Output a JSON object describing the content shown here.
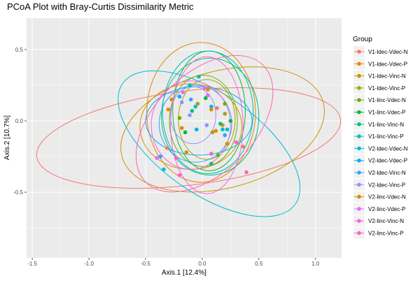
{
  "chart_data": {
    "type": "scatter",
    "title": "PCoA Plot with Bray-Curtis Dissimilarity Metric",
    "xlabel": "Axis.1   [12.4%]",
    "ylabel": "Axis.2   [10.7%]",
    "xlim": [
      -1.55,
      1.23
    ],
    "ylim": [
      -0.96,
      0.72
    ],
    "x_ticks": [
      -1.5,
      -1.0,
      -0.5,
      0.0,
      0.5,
      1.0
    ],
    "x_tick_labels": [
      "-1.5",
      "-1.0",
      "-0.5",
      "0.0",
      "0.5",
      "1.0"
    ],
    "y_ticks": [
      -0.5,
      0.0,
      0.5
    ],
    "y_tick_labels": [
      "-0.5",
      "0.0",
      "0.5"
    ],
    "grid": true,
    "panel_background": "#ebebeb",
    "legend": {
      "title": "Group",
      "placement": "right"
    },
    "series": [
      {
        "name": "V1-ldec-Vdec-N",
        "color": "#F8766D",
        "points": [
          [
            -0.31,
            -0.19
          ],
          [
            0.13,
            0.09
          ],
          [
            0.36,
            -0.18
          ]
        ],
        "ellipse": {
          "cx": -0.12,
          "cy": -0.12,
          "rx": 1.35,
          "ry": 0.33,
          "angle": 7
        }
      },
      {
        "name": "V1-ldec-Vdec-P",
        "color": "#E58700",
        "points": [
          [
            -0.27,
            0.15
          ],
          [
            -0.18,
            -0.05
          ],
          [
            0.12,
            -0.07
          ]
        ],
        "ellipse": {
          "cx": -0.01,
          "cy": 0.06,
          "rx": 0.48,
          "ry": 0.49,
          "angle": 0
        }
      },
      {
        "name": "V1-ldec-Vinc-N",
        "color": "#C99800",
        "points": [
          [
            0.05,
            0.22
          ],
          [
            0.18,
            -0.03
          ],
          [
            0.22,
            -0.16
          ]
        ],
        "ellipse": {
          "cx": 0.18,
          "cy": -0.06,
          "rx": 0.92,
          "ry": 0.41,
          "angle": 15
        }
      },
      {
        "name": "V1-ldec-Vinc-P",
        "color": "#A3A500",
        "points": [
          [
            -0.04,
            0.12
          ],
          [
            0.09,
            -0.08
          ],
          [
            0.2,
            0.05
          ]
        ],
        "ellipse": {
          "cx": 0.04,
          "cy": 0.01,
          "rx": 0.25,
          "ry": 0.28,
          "angle": 0
        }
      },
      {
        "name": "V1-linc-Vdec-N",
        "color": "#6BB100",
        "points": [
          [
            0.2,
            0.12
          ],
          [
            -0.2,
            0.02
          ],
          [
            0.14,
            -0.24
          ]
        ],
        "ellipse": {
          "cx": 0.01,
          "cy": 0.0,
          "rx": 0.3,
          "ry": 0.32,
          "angle": 0
        }
      },
      {
        "name": "V1-linc-Vdec-P",
        "color": "#00BA38",
        "points": [
          [
            0.25,
            0.0
          ],
          [
            0.03,
            0.16
          ],
          [
            -0.15,
            -0.08
          ]
        ],
        "ellipse": {
          "cx": 0.06,
          "cy": 0.07,
          "rx": 0.32,
          "ry": 0.42,
          "angle": 0
        }
      },
      {
        "name": "V1-linc-Vinc-N",
        "color": "#00BF7D",
        "points": [
          [
            -0.09,
            0.07
          ],
          [
            0.08,
            -0.3
          ],
          [
            0.16,
            -0.02
          ]
        ],
        "ellipse": {
          "cx": 0.07,
          "cy": 0.03,
          "rx": 0.43,
          "ry": 0.41,
          "angle": 0
        }
      },
      {
        "name": "V1-linc-Vinc-P",
        "color": "#00C0B5",
        "points": [
          [
            -0.11,
            0.25
          ],
          [
            -0.03,
            0.31
          ],
          [
            0.22,
            -0.06
          ]
        ],
        "ellipse": {
          "cx": 0.05,
          "cy": 0.06,
          "rx": 0.4,
          "ry": 0.43,
          "angle": 0
        }
      },
      {
        "name": "V2-ldec-Vdec-N",
        "color": "#00BCD8",
        "points": [
          [
            -0.34,
            -0.34
          ],
          [
            -0.06,
            0.1
          ],
          [
            0.18,
            -0.06
          ]
        ],
        "ellipse": {
          "cx": 0.06,
          "cy": -0.16,
          "rx": 0.93,
          "ry": 0.35,
          "angle": -35
        }
      },
      {
        "name": "V2-ldec-Vdec-P",
        "color": "#00B0F6",
        "points": [
          [
            -0.2,
            0.17
          ],
          [
            0.08,
            0.1
          ],
          [
            -0.05,
            -0.06
          ]
        ],
        "ellipse": {
          "cx": -0.03,
          "cy": 0.0,
          "rx": 0.47,
          "ry": 0.24,
          "angle": 0
        }
      },
      {
        "name": "V2-ldec-Vinc-N",
        "color": "#35A2FF",
        "points": [
          [
            -0.37,
            -0.25
          ],
          [
            -0.1,
            0.15
          ],
          [
            0.2,
            -0.1
          ]
        ],
        "ellipse": {
          "cx": -0.06,
          "cy": -0.02,
          "rx": 0.32,
          "ry": 0.27,
          "angle": 0
        }
      },
      {
        "name": "V2-ldec-Vinc-P",
        "color": "#9590FF",
        "points": [
          [
            -0.18,
            0.13
          ],
          [
            0.04,
            -0.03
          ],
          [
            -0.11,
            0.04
          ]
        ],
        "ellipse": {
          "cx": -0.08,
          "cy": 0.04,
          "rx": 0.2,
          "ry": 0.2,
          "angle": 0
        }
      },
      {
        "name": "V2-linc-Vdec-N",
        "color": "#D89000",
        "points": [
          [
            -0.3,
            0.08
          ],
          [
            -0.14,
            -0.22
          ],
          [
            0.08,
            0.08
          ]
        ],
        "ellipse": {
          "cx": -0.1,
          "cy": -0.04,
          "rx": 0.45,
          "ry": 0.3,
          "angle": 0
        }
      },
      {
        "name": "V2-linc-Vdec-P",
        "color": "#E76BF3",
        "points": [
          [
            -0.17,
            0.2
          ],
          [
            -0.4,
            -0.26
          ],
          [
            0.05,
            0.18
          ]
        ],
        "ellipse": {
          "cx": -0.1,
          "cy": -0.03,
          "rx": 0.35,
          "ry": 0.31,
          "angle": 0
        }
      },
      {
        "name": "V2-linc-Vinc-N",
        "color": "#FA62DB",
        "points": [
          [
            -0.2,
            -0.38
          ],
          [
            0.02,
            0.23
          ],
          [
            0.3,
            -0.15
          ]
        ],
        "ellipse": {
          "cx": 0.04,
          "cy": -0.03,
          "rx": 0.32,
          "ry": 0.48,
          "angle": 0
        }
      },
      {
        "name": "V2-linc-Vinc-P",
        "color": "#FF62BC",
        "points": [
          [
            0.39,
            -0.36
          ],
          [
            -0.23,
            -0.26
          ],
          [
            0.08,
            -0.23
          ]
        ],
        "ellipse": {
          "cx": 0.02,
          "cy": -0.02,
          "rx": 0.44,
          "ry": 0.58,
          "angle": -45
        }
      }
    ]
  }
}
